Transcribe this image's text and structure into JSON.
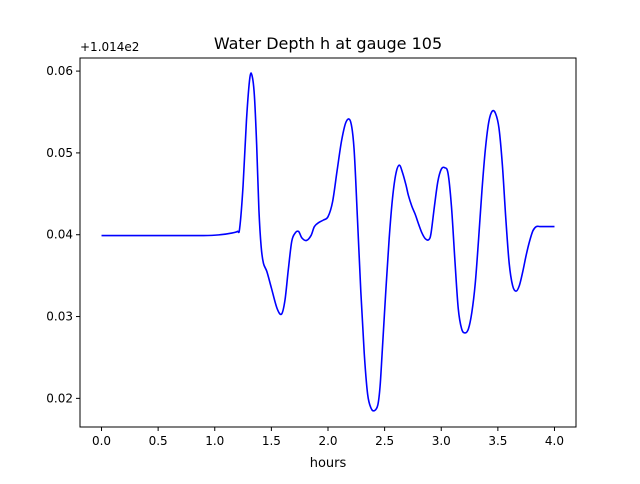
{
  "chart_data": {
    "type": "line",
    "title": "Water Depth h at gauge 105",
    "xlabel": "hours",
    "ylabel": "",
    "offset_label": "+1.014e2",
    "xlim": [
      -0.19,
      4.19
    ],
    "ylim": [
      0.0165,
      0.0616
    ],
    "grid": false,
    "x_ticks": [
      {
        "value": 0.0,
        "label": "0.0"
      },
      {
        "value": 0.5,
        "label": "0.5"
      },
      {
        "value": 1.0,
        "label": "1.0"
      },
      {
        "value": 1.5,
        "label": "1.5"
      },
      {
        "value": 2.0,
        "label": "2.0"
      },
      {
        "value": 2.5,
        "label": "2.5"
      },
      {
        "value": 3.0,
        "label": "3.0"
      },
      {
        "value": 3.5,
        "label": "3.5"
      },
      {
        "value": 4.0,
        "label": "4.0"
      }
    ],
    "y_ticks": [
      {
        "value": 0.02,
        "label": "0.02"
      },
      {
        "value": 0.03,
        "label": "0.03"
      },
      {
        "value": 0.04,
        "label": "0.04"
      },
      {
        "value": 0.05,
        "label": "0.05"
      },
      {
        "value": 0.06,
        "label": "0.06"
      }
    ],
    "series": [
      {
        "color": "#0000ff",
        "x": [
          0.0,
          0.5,
          0.9,
          1.05,
          1.15,
          1.2,
          1.22,
          1.25,
          1.28,
          1.31,
          1.33,
          1.35,
          1.37,
          1.39,
          1.41,
          1.43,
          1.46,
          1.5,
          1.55,
          1.59,
          1.62,
          1.65,
          1.68,
          1.71,
          1.74,
          1.77,
          1.81,
          1.85,
          1.88,
          1.92,
          1.96,
          2.0,
          2.04,
          2.08,
          2.12,
          2.16,
          2.2,
          2.23,
          2.26,
          2.29,
          2.32,
          2.35,
          2.38,
          2.41,
          2.44,
          2.46,
          2.48,
          2.51,
          2.54,
          2.57,
          2.6,
          2.63,
          2.66,
          2.69,
          2.71,
          2.74,
          2.77,
          2.8,
          2.83,
          2.86,
          2.89,
          2.91,
          2.94,
          2.97,
          3.0,
          3.03,
          3.06,
          3.09,
          3.12,
          3.15,
          3.18,
          3.21,
          3.24,
          3.27,
          3.3,
          3.33,
          3.36,
          3.39,
          3.42,
          3.45,
          3.48,
          3.51,
          3.54,
          3.57,
          3.6,
          3.63,
          3.66,
          3.69,
          3.72,
          3.75,
          3.78,
          3.81,
          3.84,
          3.87,
          3.9,
          3.93,
          3.96,
          4.0
        ],
        "y": [
          0.0399,
          0.0399,
          0.0399,
          0.04,
          0.0402,
          0.0404,
          0.0408,
          0.046,
          0.054,
          0.0592,
          0.0594,
          0.057,
          0.051,
          0.043,
          0.0385,
          0.0365,
          0.0355,
          0.0335,
          0.031,
          0.0303,
          0.032,
          0.0358,
          0.0392,
          0.0402,
          0.0404,
          0.0396,
          0.0393,
          0.0399,
          0.041,
          0.0415,
          0.0418,
          0.0422,
          0.044,
          0.0478,
          0.0515,
          0.0538,
          0.0538,
          0.0505,
          0.042,
          0.033,
          0.0255,
          0.0205,
          0.0188,
          0.0185,
          0.0192,
          0.0215,
          0.026,
          0.033,
          0.0395,
          0.0445,
          0.0475,
          0.0485,
          0.0475,
          0.046,
          0.0448,
          0.0435,
          0.0425,
          0.0413,
          0.0402,
          0.0395,
          0.0394,
          0.0402,
          0.0435,
          0.0465,
          0.048,
          0.0482,
          0.0475,
          0.0435,
          0.037,
          0.031,
          0.0285,
          0.028,
          0.0285,
          0.0305,
          0.034,
          0.0395,
          0.0455,
          0.0505,
          0.0538,
          0.0551,
          0.0548,
          0.053,
          0.0485,
          0.042,
          0.0365,
          0.0338,
          0.0331,
          0.0338,
          0.0355,
          0.0375,
          0.0392,
          0.0405,
          0.041,
          0.041,
          0.041,
          0.041,
          0.041,
          0.041
        ]
      }
    ]
  }
}
